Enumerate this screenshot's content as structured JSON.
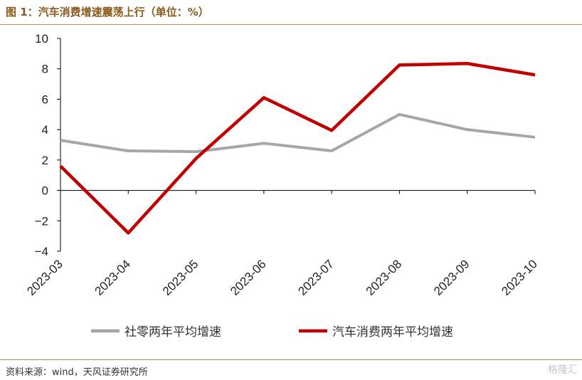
{
  "header": {
    "title": "图 1：汽车消费增速震荡上行（单位：%）"
  },
  "footer": {
    "source": "资料来源：wind，天风证券研究所",
    "watermark": "格隆汇"
  },
  "colors": {
    "series1": "#a6a6a6",
    "series2": "#c00000",
    "accent_rule": "#c9874a"
  },
  "chart_data": {
    "type": "line",
    "title": "汽车消费增速震荡上行（单位：%）",
    "xlabel": "",
    "ylabel": "",
    "x": [
      "2023-03",
      "2023-04",
      "2023-05",
      "2023-06",
      "2023-07",
      "2023-08",
      "2023-09",
      "2023-10"
    ],
    "ylim": [
      -4,
      10
    ],
    "yticks": [
      10,
      8,
      6,
      4,
      2,
      0,
      -2,
      -4
    ],
    "ytick_labels": [
      "10",
      "8",
      "6",
      "4",
      "2",
      "0",
      "−2",
      "−4"
    ],
    "grid": false,
    "legend_position": "bottom",
    "series": [
      {
        "name": "社零两年平均增速",
        "values": [
          3.3,
          2.6,
          2.55,
          3.1,
          2.6,
          5.0,
          4.0,
          3.5
        ]
      },
      {
        "name": "汽车消费两年平均增速",
        "values": [
          1.6,
          -2.8,
          2.1,
          6.1,
          3.95,
          8.25,
          8.35,
          7.6
        ]
      }
    ]
  }
}
